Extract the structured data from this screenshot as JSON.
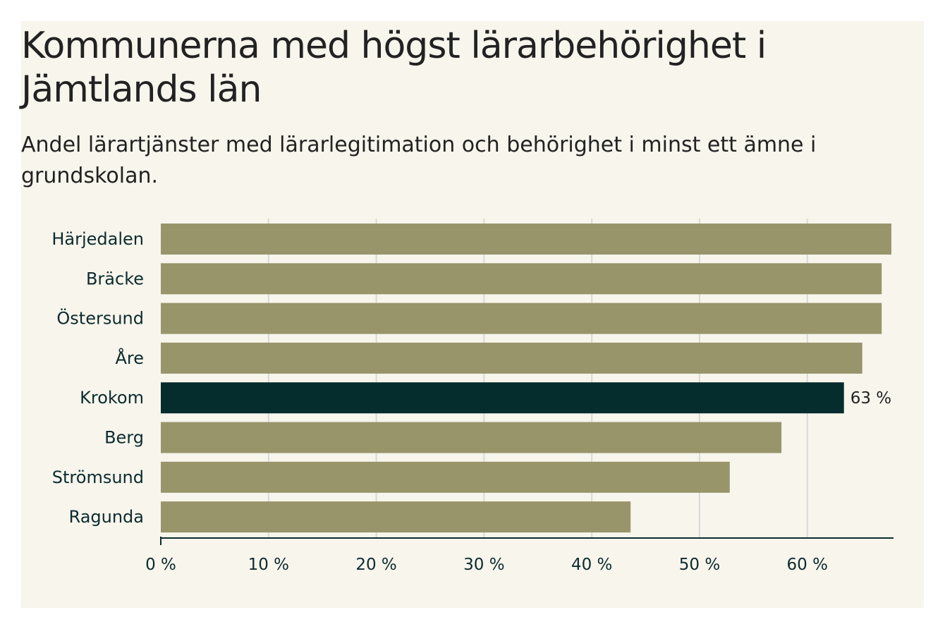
{
  "title": "Kommunerna med högst lärarbehörighet i Jämtlands län",
  "subtitle": "Andel lärartjänster med lärarlegitimation och behörighet i minst ett ämne i grundskolan.",
  "colors": {
    "background": "#f7f5ec",
    "bar": "#98956b",
    "highlight": "#062d2d",
    "grid": "#d9d9d9",
    "axis": "#0c2b2e"
  },
  "chart_data": {
    "type": "bar",
    "orientation": "horizontal",
    "categories": [
      "Härjedalen",
      "Bräcke",
      "Östersund",
      "Åre",
      "Krokom",
      "Berg",
      "Strömsund",
      "Ragunda"
    ],
    "values": [
      67.8,
      66.9,
      66.9,
      65.1,
      63.4,
      57.6,
      52.8,
      43.6
    ],
    "highlight": "Krokom",
    "data_labels": [
      {
        "category": "Krokom",
        "text": "63 %"
      }
    ],
    "xlim": [
      0,
      68
    ],
    "xticks": [
      0,
      10,
      20,
      30,
      40,
      50,
      60
    ],
    "xtick_labels": [
      "0 %",
      "10 %",
      "20 %",
      "30 %",
      "40 %",
      "50 %",
      "60 %"
    ],
    "xlabel": "",
    "ylabel": "",
    "grid": "vertical"
  }
}
